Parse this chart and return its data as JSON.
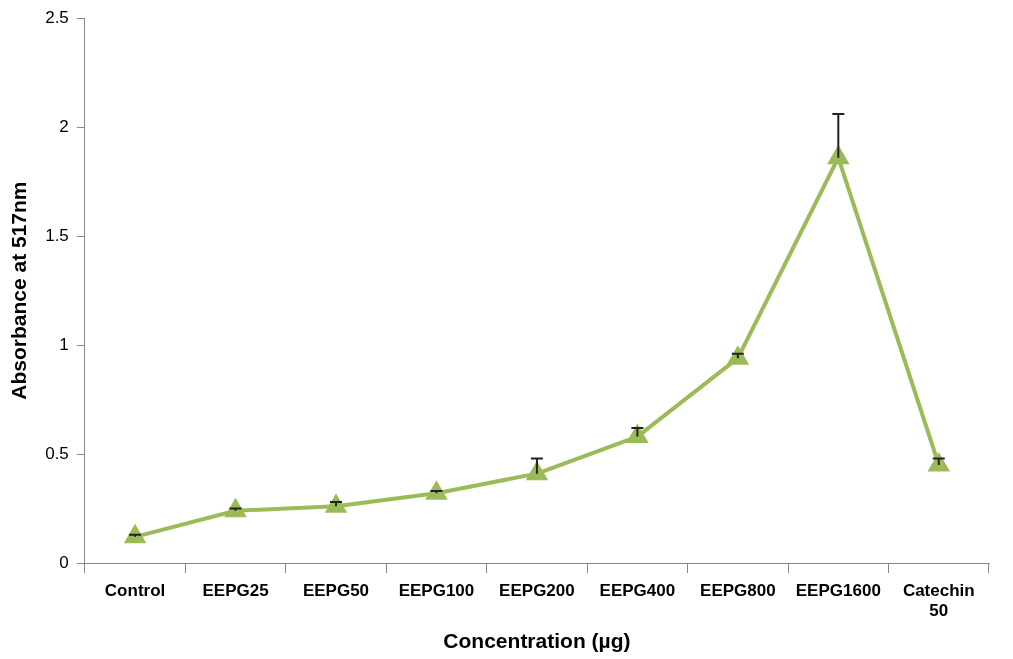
{
  "chart_data": {
    "type": "line",
    "xlabel": "Concentration (µg)",
    "ylabel": "Absorbance at 517nm",
    "categories": [
      "Control",
      "EEPG25",
      "EEPG50",
      "EEPG100",
      "EEPG200",
      "EEPG400",
      "EEPG800",
      "EEPG1600",
      "Catechin 50"
    ],
    "series": [
      {
        "color": "#9bbb59",
        "values": [
          0.12,
          0.24,
          0.26,
          0.32,
          0.41,
          0.58,
          0.94,
          1.86,
          0.45
        ],
        "errors": [
          [
            0.12,
            0.13
          ],
          [
            0.24,
            0.25
          ],
          [
            0.26,
            0.28
          ],
          [
            0.32,
            0.33
          ],
          [
            0.41,
            0.48
          ],
          [
            0.58,
            0.62
          ],
          [
            0.94,
            0.96
          ],
          [
            1.86,
            2.06
          ],
          [
            0.45,
            0.48
          ]
        ]
      }
    ],
    "ylim": [
      0,
      2.5
    ],
    "yticks": [
      0,
      0.5,
      1,
      1.5,
      2,
      2.5
    ],
    "grid": false,
    "legend": false,
    "marker": "triangle",
    "line_style": "solid"
  }
}
